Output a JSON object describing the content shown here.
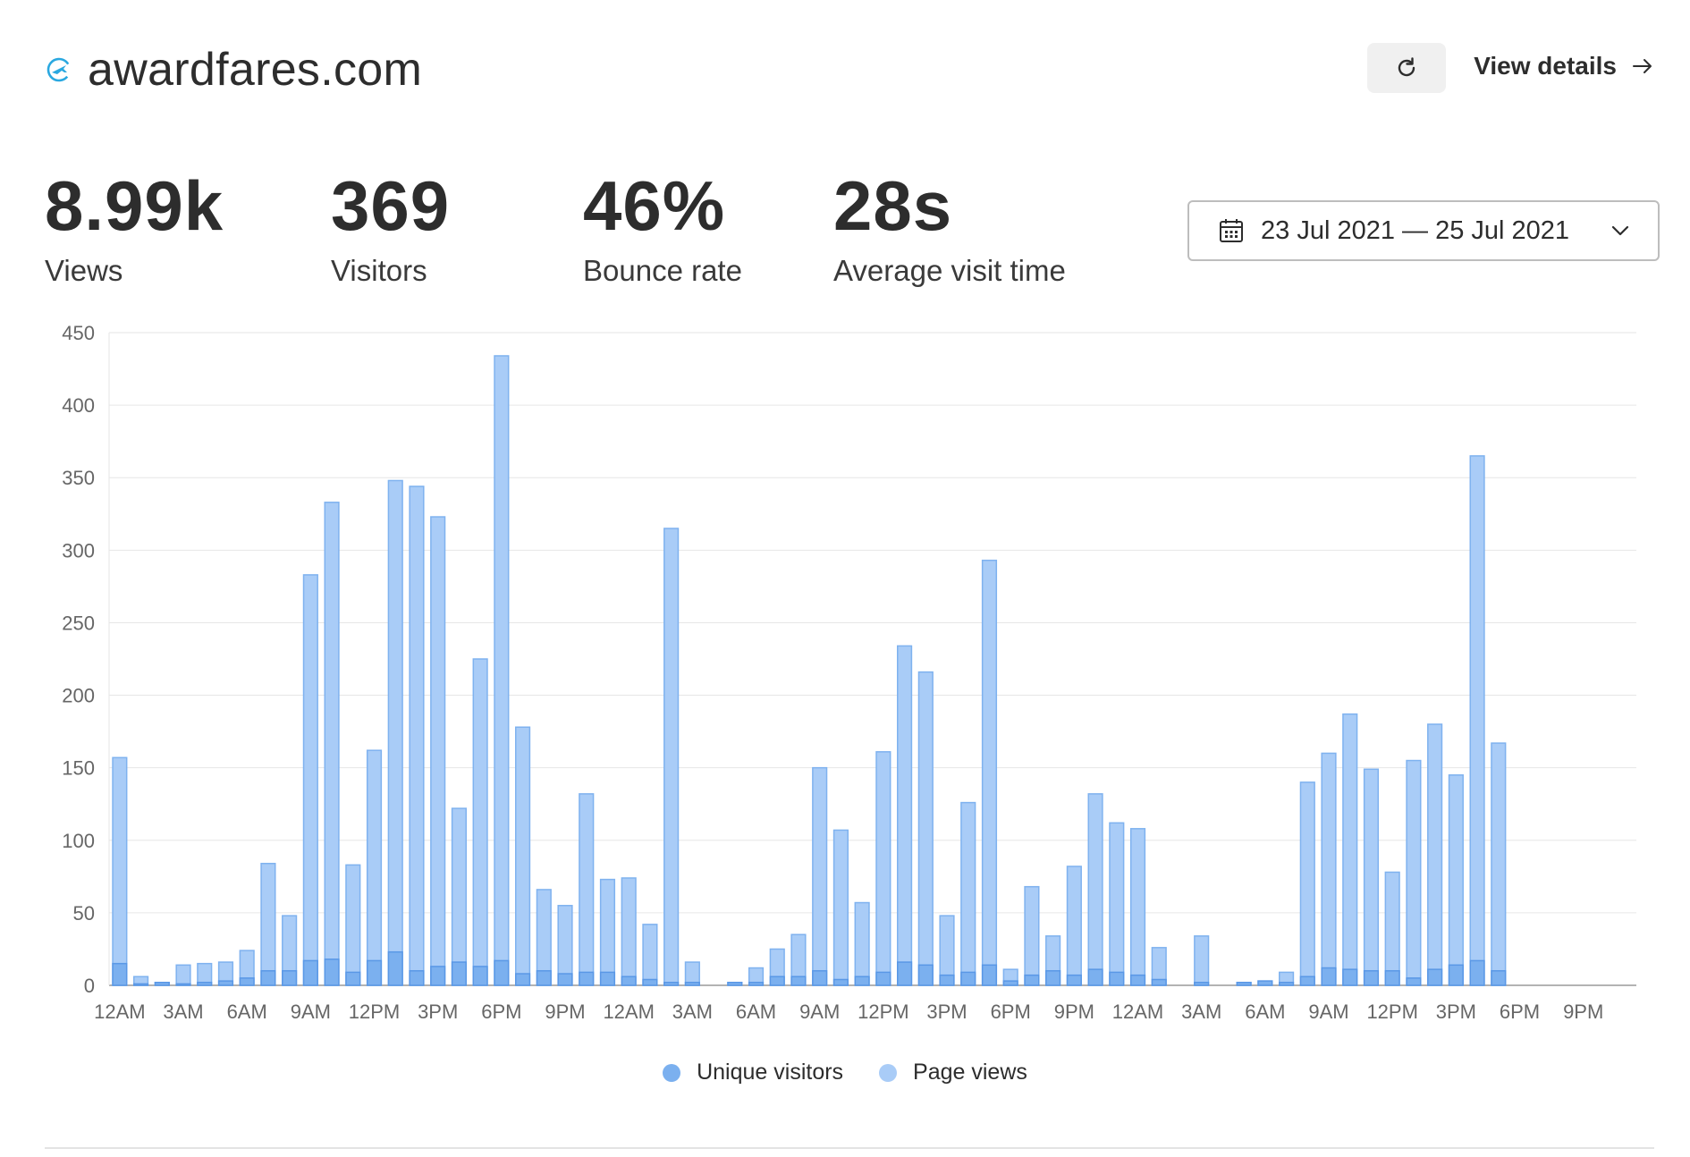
{
  "site": {
    "name": "awardfares.com",
    "icon": "plane-icon"
  },
  "header": {
    "refresh_icon": "refresh-icon",
    "view_details_label": "View details",
    "arrow_icon": "arrow-right-icon"
  },
  "stats": [
    {
      "value": "8.99k",
      "label": "Views"
    },
    {
      "value": "369",
      "label": "Visitors"
    },
    {
      "value": "46%",
      "label": "Bounce rate"
    },
    {
      "value": "28s",
      "label": "Average visit time"
    }
  ],
  "date_range": {
    "label": "23 Jul 2021 — 25 Jul 2021",
    "icon": "calendar-icon",
    "chevron": "chevron-down-icon"
  },
  "legend": [
    {
      "label": "Unique visitors",
      "color": "#7bb0ef"
    },
    {
      "label": "Page views",
      "color": "#a9ccf7"
    }
  ],
  "chart_data": {
    "type": "bar",
    "stacked": "overlay",
    "title": "",
    "xlabel": "",
    "ylabel": "",
    "ylim": [
      0,
      450
    ],
    "y_ticks": [
      0,
      50,
      100,
      150,
      200,
      250,
      300,
      350,
      400,
      450
    ],
    "grid": true,
    "legend_position": "bottom-center",
    "x_tick_labels": [
      "12AM",
      "3AM",
      "6AM",
      "9AM",
      "12PM",
      "3PM",
      "6PM",
      "9PM",
      "12AM",
      "3AM",
      "6AM",
      "9AM",
      "12PM",
      "3PM",
      "6PM",
      "9PM",
      "12AM",
      "3AM",
      "6AM",
      "9AM",
      "12PM",
      "3PM",
      "6PM",
      "9PM"
    ],
    "tick_every": 3,
    "series": [
      {
        "name": "Unique visitors",
        "color": "#7bb0ef",
        "values": [
          15,
          1,
          2,
          1,
          2,
          3,
          5,
          10,
          10,
          17,
          18,
          9,
          17,
          23,
          10,
          13,
          16,
          13,
          17,
          8,
          10,
          8,
          9,
          9,
          6,
          4,
          2,
          2,
          0,
          2,
          2,
          6,
          6,
          10,
          4,
          6,
          9,
          16,
          14,
          7,
          9,
          14,
          3,
          7,
          10,
          7,
          11,
          9,
          7,
          4,
          0,
          2,
          0,
          2,
          3,
          2,
          6,
          12,
          11,
          10,
          10,
          5,
          11,
          14,
          17,
          10,
          0,
          0,
          0,
          0,
          0,
          0
        ]
      },
      {
        "name": "Page views",
        "color": "#a9ccf7",
        "values": [
          157,
          6,
          2,
          14,
          15,
          16,
          24,
          84,
          48,
          283,
          333,
          83,
          162,
          348,
          344,
          323,
          122,
          225,
          434,
          178,
          66,
          55,
          132,
          73,
          74,
          42,
          315,
          16,
          0,
          2,
          12,
          25,
          35,
          150,
          107,
          57,
          161,
          234,
          216,
          48,
          126,
          293,
          11,
          68,
          34,
          82,
          132,
          112,
          108,
          26,
          0,
          34,
          0,
          2,
          3,
          9,
          140,
          160,
          187,
          149,
          78,
          155,
          180,
          145,
          365,
          167,
          0,
          0,
          0,
          0,
          0,
          0
        ]
      }
    ]
  }
}
